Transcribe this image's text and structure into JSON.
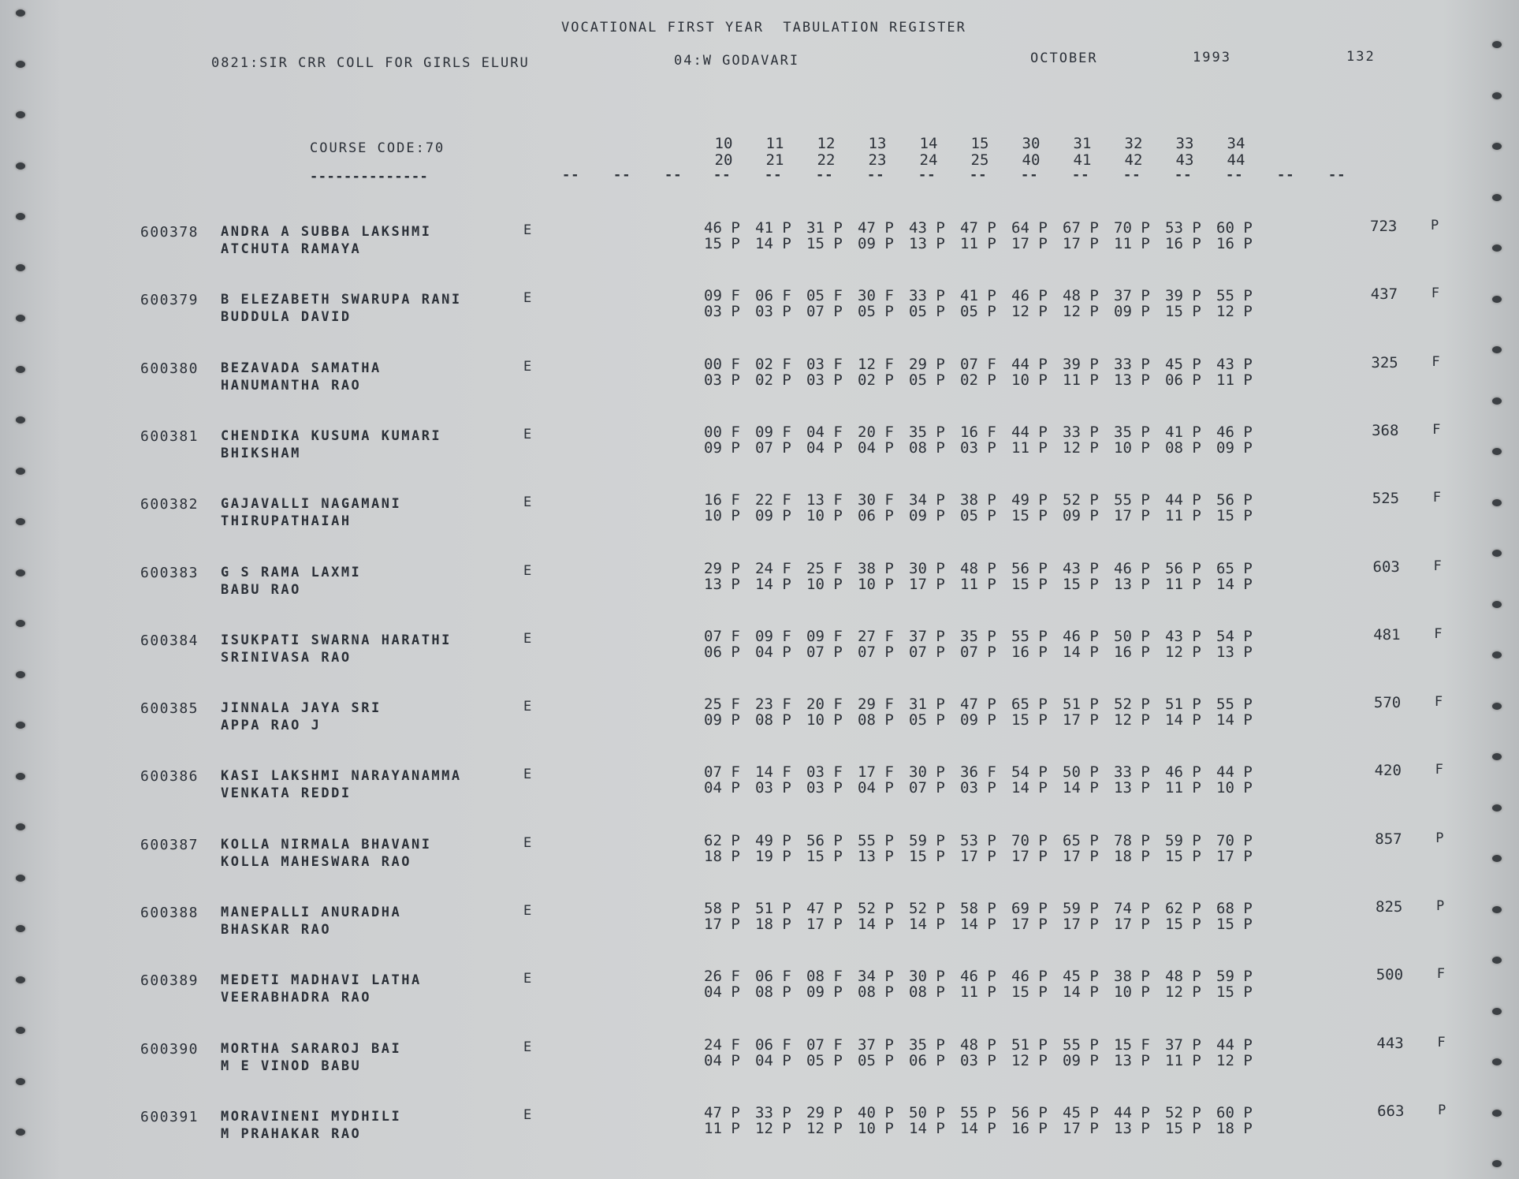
{
  "header": {
    "title": "VOCATIONAL FIRST YEAR  TABULATION REGISTER",
    "college": "0821:SIR CRR COLL FOR GIRLS ELURU",
    "district": "04:W GODAVARI",
    "month": "OCTOBER",
    "year": "1993",
    "page": "132",
    "course_code": "COURSE CODE:70",
    "course_underline": "--------------"
  },
  "columns": {
    "top": [
      "10",
      "11",
      "12",
      "13",
      "14",
      "15",
      "30",
      "31",
      "32",
      "33",
      "34"
    ],
    "bottom": [
      "20",
      "21",
      "22",
      "23",
      "24",
      "25",
      "40",
      "41",
      "42",
      "43",
      "44"
    ]
  },
  "students": [
    {
      "roll": "600378",
      "name": "ANDRA A SUBBA LAKSHMI",
      "father": "ATCHUTA RAMAYA",
      "medium": "E",
      "marks1": [
        "46 P",
        "41 P",
        "31 P",
        "47 P",
        "43 P",
        "47 P",
        "64 P",
        "67 P",
        "70 P",
        "53 P",
        "60 P"
      ],
      "marks2": [
        "15 P",
        "14 P",
        "15 P",
        "09 P",
        "13 P",
        "11 P",
        "17 P",
        "17 P",
        "11 P",
        "16 P",
        "16 P"
      ],
      "total": "723",
      "result": "P"
    },
    {
      "roll": "600379",
      "name": "B ELEZABETH SWARUPA RANI",
      "father": "BUDDULA DAVID",
      "medium": "E",
      "marks1": [
        "09 F",
        "06 F",
        "05 F",
        "30 F",
        "33 P",
        "41 P",
        "46 P",
        "48 P",
        "37 P",
        "39 P",
        "55 P"
      ],
      "marks2": [
        "03 P",
        "03 P",
        "07 P",
        "05 P",
        "05 P",
        "05 P",
        "12 P",
        "12 P",
        "09 P",
        "15 P",
        "12 P"
      ],
      "total": "437",
      "result": "F"
    },
    {
      "roll": "600380",
      "name": "BEZAVADA SAMATHA",
      "father": "HANUMANTHA RAO",
      "medium": "E",
      "marks1": [
        "00 F",
        "02 F",
        "03 F",
        "12 F",
        "29 P",
        "07 F",
        "44 P",
        "39 P",
        "33 P",
        "45 P",
        "43 P"
      ],
      "marks2": [
        "03 P",
        "02 P",
        "03 P",
        "02 P",
        "05 P",
        "02 P",
        "10 P",
        "11 P",
        "13 P",
        "06 P",
        "11 P"
      ],
      "total": "325",
      "result": "F"
    },
    {
      "roll": "600381",
      "name": "CHENDIKA KUSUMA KUMARI",
      "father": "BHIKSHAM",
      "medium": "E",
      "marks1": [
        "00 F",
        "09 F",
        "04 F",
        "20 F",
        "35 P",
        "16 F",
        "44 P",
        "33 P",
        "35 P",
        "41 P",
        "46 P"
      ],
      "marks2": [
        "09 P",
        "07 P",
        "04 P",
        "04 P",
        "08 P",
        "03 P",
        "11 P",
        "12 P",
        "10 P",
        "08 P",
        "09 P"
      ],
      "total": "368",
      "result": "F"
    },
    {
      "roll": "600382",
      "name": "GAJAVALLI NAGAMANI",
      "father": "THIRUPATHAIAH",
      "medium": "E",
      "marks1": [
        "16 F",
        "22 F",
        "13 F",
        "30 F",
        "34 P",
        "38 P",
        "49 P",
        "52 P",
        "55 P",
        "44 P",
        "56 P"
      ],
      "marks2": [
        "10 P",
        "09 P",
        "10 P",
        "06 P",
        "09 P",
        "05 P",
        "15 P",
        "09 P",
        "17 P",
        "11 P",
        "15 P"
      ],
      "total": "525",
      "result": "F"
    },
    {
      "roll": "600383",
      "name": "G S RAMA LAXMI",
      "father": "BABU RAO",
      "medium": "E",
      "marks1": [
        "29 P",
        "24 F",
        "25 F",
        "38 P",
        "30 P",
        "48 P",
        "56 P",
        "43 P",
        "46 P",
        "56 P",
        "65 P"
      ],
      "marks2": [
        "13 P",
        "14 P",
        "10 P",
        "10 P",
        "17 P",
        "11 P",
        "15 P",
        "15 P",
        "13 P",
        "11 P",
        "14 P"
      ],
      "total": "603",
      "result": "F"
    },
    {
      "roll": "600384",
      "name": "ISUKPATI SWARNA HARATHI",
      "father": "SRINIVASA RAO",
      "medium": "E",
      "marks1": [
        "07 F",
        "09 F",
        "09 F",
        "27 F",
        "37 P",
        "35 P",
        "55 P",
        "46 P",
        "50 P",
        "43 P",
        "54 P"
      ],
      "marks2": [
        "06 P",
        "04 P",
        "07 P",
        "07 P",
        "07 P",
        "07 P",
        "16 P",
        "14 P",
        "16 P",
        "12 P",
        "13 P"
      ],
      "total": "481",
      "result": "F"
    },
    {
      "roll": "600385",
      "name": "JINNALA JAYA SRI",
      "father": "APPA RAO J",
      "medium": "E",
      "marks1": [
        "25 F",
        "23 F",
        "20 F",
        "29 F",
        "31 P",
        "47 P",
        "65 P",
        "51 P",
        "52 P",
        "51 P",
        "55 P"
      ],
      "marks2": [
        "09 P",
        "08 P",
        "10 P",
        "08 P",
        "05 P",
        "09 P",
        "15 P",
        "17 P",
        "12 P",
        "14 P",
        "14 P"
      ],
      "total": "570",
      "result": "F"
    },
    {
      "roll": "600386",
      "name": "KASI LAKSHMI NARAYANAMMA",
      "father": "VENKATA REDDI",
      "medium": "E",
      "marks1": [
        "07 F",
        "14 F",
        "03 F",
        "17 F",
        "30 P",
        "36 F",
        "54 P",
        "50 P",
        "33 P",
        "46 P",
        "44 P"
      ],
      "marks2": [
        "04 P",
        "03 P",
        "03 P",
        "04 P",
        "07 P",
        "03 P",
        "14 P",
        "14 P",
        "13 P",
        "11 P",
        "10 P"
      ],
      "total": "420",
      "result": "F"
    },
    {
      "roll": "600387",
      "name": "KOLLA NIRMALA BHAVANI",
      "father": "KOLLA MAHESWARA RAO",
      "medium": "E",
      "marks1": [
        "62 P",
        "49 P",
        "56 P",
        "55 P",
        "59 P",
        "53 P",
        "70 P",
        "65 P",
        "78 P",
        "59 P",
        "70 P"
      ],
      "marks2": [
        "18 P",
        "19 P",
        "15 P",
        "13 P",
        "15 P",
        "17 P",
        "17 P",
        "17 P",
        "18 P",
        "15 P",
        "17 P"
      ],
      "total": "857",
      "result": "P"
    },
    {
      "roll": "600388",
      "name": "MANEPALLI ANURADHA",
      "father": "BHASKAR RAO",
      "medium": "E",
      "marks1": [
        "58 P",
        "51 P",
        "47 P",
        "52 P",
        "52 P",
        "58 P",
        "69 P",
        "59 P",
        "74 P",
        "62 P",
        "68 P"
      ],
      "marks2": [
        "17 P",
        "18 P",
        "17 P",
        "14 P",
        "14 P",
        "14 P",
        "17 P",
        "17 P",
        "17 P",
        "15 P",
        "15 P"
      ],
      "total": "825",
      "result": "P"
    },
    {
      "roll": "600389",
      "name": "MEDETI MADHAVI LATHA",
      "father": "VEERABHADRA RAO",
      "medium": "E",
      "marks1": [
        "26 F",
        "06 F",
        "08 F",
        "34 P",
        "30 P",
        "46 P",
        "46 P",
        "45 P",
        "38 P",
        "48 P",
        "59 P"
      ],
      "marks2": [
        "04 P",
        "08 P",
        "09 P",
        "08 P",
        "08 P",
        "11 P",
        "15 P",
        "14 P",
        "10 P",
        "12 P",
        "15 P"
      ],
      "total": "500",
      "result": "F"
    },
    {
      "roll": "600390",
      "name": "MORTHA SARAROJ BAI",
      "father": "M E VINOD BABU",
      "medium": "E",
      "marks1": [
        "24 F",
        "06 F",
        "07 F",
        "37 P",
        "35 P",
        "48 P",
        "51 P",
        "55 P",
        "15 F",
        "37 P",
        "44 P"
      ],
      "marks2": [
        "04 P",
        "04 P",
        "05 P",
        "05 P",
        "06 P",
        "03 P",
        "12 P",
        "09 P",
        "13 P",
        "11 P",
        "12 P"
      ],
      "total": "443",
      "result": "F"
    },
    {
      "roll": "600391",
      "name": "MORAVINENI MYDHILI",
      "father": "M PRAHAKAR RAO",
      "medium": "E",
      "marks1": [
        "47 P",
        "33 P",
        "29 P",
        "40 P",
        "50 P",
        "55 P",
        "56 P",
        "45 P",
        "44 P",
        "52 P",
        "60 P"
      ],
      "marks2": [
        "11 P",
        "12 P",
        "12 P",
        "10 P",
        "14 P",
        "14 P",
        "16 P",
        "17 P",
        "13 P",
        "15 P",
        "18 P"
      ],
      "total": "663",
      "result": "P"
    }
  ],
  "colors": {
    "paper": "#d2d4d5",
    "ink": "#2b3038",
    "hole": "#3c4044"
  }
}
